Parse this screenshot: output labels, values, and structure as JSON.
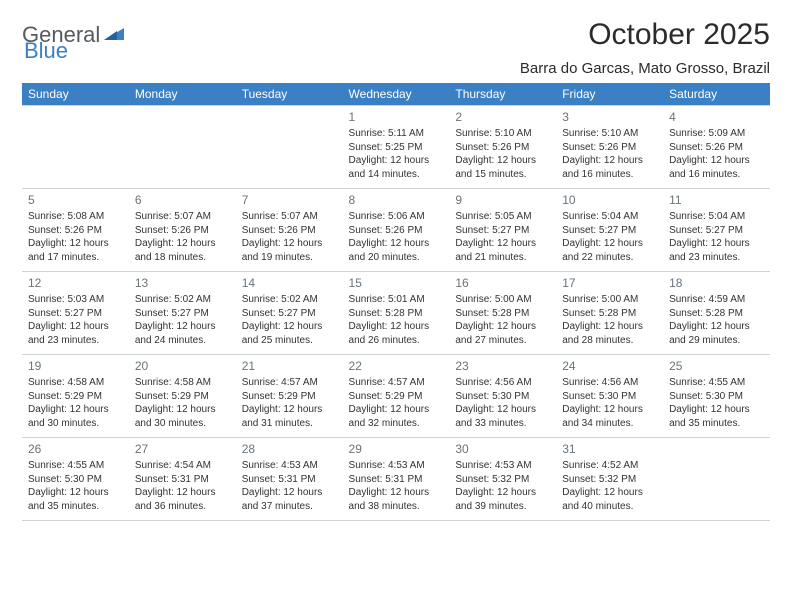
{
  "logo": {
    "general": "General",
    "blue": "Blue",
    "triangle_color": "#3b7fc4"
  },
  "title": "October 2025",
  "location": "Barra do Garcas, Mato Grosso, Brazil",
  "colors": {
    "header_bg": "#3b7fc4",
    "header_text": "#ffffff",
    "border": "#d0d3d6",
    "daynum": "#6a737b",
    "body_text": "#333333",
    "logo_gray": "#555b61",
    "logo_blue": "#3b7fc4",
    "background": "#ffffff"
  },
  "weekdays": [
    "Sunday",
    "Monday",
    "Tuesday",
    "Wednesday",
    "Thursday",
    "Friday",
    "Saturday"
  ],
  "weeks": [
    [
      null,
      null,
      null,
      {
        "n": "1",
        "sr": "Sunrise: 5:11 AM",
        "ss": "Sunset: 5:25 PM",
        "dl1": "Daylight: 12 hours",
        "dl2": "and 14 minutes."
      },
      {
        "n": "2",
        "sr": "Sunrise: 5:10 AM",
        "ss": "Sunset: 5:26 PM",
        "dl1": "Daylight: 12 hours",
        "dl2": "and 15 minutes."
      },
      {
        "n": "3",
        "sr": "Sunrise: 5:10 AM",
        "ss": "Sunset: 5:26 PM",
        "dl1": "Daylight: 12 hours",
        "dl2": "and 16 minutes."
      },
      {
        "n": "4",
        "sr": "Sunrise: 5:09 AM",
        "ss": "Sunset: 5:26 PM",
        "dl1": "Daylight: 12 hours",
        "dl2": "and 16 minutes."
      }
    ],
    [
      {
        "n": "5",
        "sr": "Sunrise: 5:08 AM",
        "ss": "Sunset: 5:26 PM",
        "dl1": "Daylight: 12 hours",
        "dl2": "and 17 minutes."
      },
      {
        "n": "6",
        "sr": "Sunrise: 5:07 AM",
        "ss": "Sunset: 5:26 PM",
        "dl1": "Daylight: 12 hours",
        "dl2": "and 18 minutes."
      },
      {
        "n": "7",
        "sr": "Sunrise: 5:07 AM",
        "ss": "Sunset: 5:26 PM",
        "dl1": "Daylight: 12 hours",
        "dl2": "and 19 minutes."
      },
      {
        "n": "8",
        "sr": "Sunrise: 5:06 AM",
        "ss": "Sunset: 5:26 PM",
        "dl1": "Daylight: 12 hours",
        "dl2": "and 20 minutes."
      },
      {
        "n": "9",
        "sr": "Sunrise: 5:05 AM",
        "ss": "Sunset: 5:27 PM",
        "dl1": "Daylight: 12 hours",
        "dl2": "and 21 minutes."
      },
      {
        "n": "10",
        "sr": "Sunrise: 5:04 AM",
        "ss": "Sunset: 5:27 PM",
        "dl1": "Daylight: 12 hours",
        "dl2": "and 22 minutes."
      },
      {
        "n": "11",
        "sr": "Sunrise: 5:04 AM",
        "ss": "Sunset: 5:27 PM",
        "dl1": "Daylight: 12 hours",
        "dl2": "and 23 minutes."
      }
    ],
    [
      {
        "n": "12",
        "sr": "Sunrise: 5:03 AM",
        "ss": "Sunset: 5:27 PM",
        "dl1": "Daylight: 12 hours",
        "dl2": "and 23 minutes."
      },
      {
        "n": "13",
        "sr": "Sunrise: 5:02 AM",
        "ss": "Sunset: 5:27 PM",
        "dl1": "Daylight: 12 hours",
        "dl2": "and 24 minutes."
      },
      {
        "n": "14",
        "sr": "Sunrise: 5:02 AM",
        "ss": "Sunset: 5:27 PM",
        "dl1": "Daylight: 12 hours",
        "dl2": "and 25 minutes."
      },
      {
        "n": "15",
        "sr": "Sunrise: 5:01 AM",
        "ss": "Sunset: 5:28 PM",
        "dl1": "Daylight: 12 hours",
        "dl2": "and 26 minutes."
      },
      {
        "n": "16",
        "sr": "Sunrise: 5:00 AM",
        "ss": "Sunset: 5:28 PM",
        "dl1": "Daylight: 12 hours",
        "dl2": "and 27 minutes."
      },
      {
        "n": "17",
        "sr": "Sunrise: 5:00 AM",
        "ss": "Sunset: 5:28 PM",
        "dl1": "Daylight: 12 hours",
        "dl2": "and 28 minutes."
      },
      {
        "n": "18",
        "sr": "Sunrise: 4:59 AM",
        "ss": "Sunset: 5:28 PM",
        "dl1": "Daylight: 12 hours",
        "dl2": "and 29 minutes."
      }
    ],
    [
      {
        "n": "19",
        "sr": "Sunrise: 4:58 AM",
        "ss": "Sunset: 5:29 PM",
        "dl1": "Daylight: 12 hours",
        "dl2": "and 30 minutes."
      },
      {
        "n": "20",
        "sr": "Sunrise: 4:58 AM",
        "ss": "Sunset: 5:29 PM",
        "dl1": "Daylight: 12 hours",
        "dl2": "and 30 minutes."
      },
      {
        "n": "21",
        "sr": "Sunrise: 4:57 AM",
        "ss": "Sunset: 5:29 PM",
        "dl1": "Daylight: 12 hours",
        "dl2": "and 31 minutes."
      },
      {
        "n": "22",
        "sr": "Sunrise: 4:57 AM",
        "ss": "Sunset: 5:29 PM",
        "dl1": "Daylight: 12 hours",
        "dl2": "and 32 minutes."
      },
      {
        "n": "23",
        "sr": "Sunrise: 4:56 AM",
        "ss": "Sunset: 5:30 PM",
        "dl1": "Daylight: 12 hours",
        "dl2": "and 33 minutes."
      },
      {
        "n": "24",
        "sr": "Sunrise: 4:56 AM",
        "ss": "Sunset: 5:30 PM",
        "dl1": "Daylight: 12 hours",
        "dl2": "and 34 minutes."
      },
      {
        "n": "25",
        "sr": "Sunrise: 4:55 AM",
        "ss": "Sunset: 5:30 PM",
        "dl1": "Daylight: 12 hours",
        "dl2": "and 35 minutes."
      }
    ],
    [
      {
        "n": "26",
        "sr": "Sunrise: 4:55 AM",
        "ss": "Sunset: 5:30 PM",
        "dl1": "Daylight: 12 hours",
        "dl2": "and 35 minutes."
      },
      {
        "n": "27",
        "sr": "Sunrise: 4:54 AM",
        "ss": "Sunset: 5:31 PM",
        "dl1": "Daylight: 12 hours",
        "dl2": "and 36 minutes."
      },
      {
        "n": "28",
        "sr": "Sunrise: 4:53 AM",
        "ss": "Sunset: 5:31 PM",
        "dl1": "Daylight: 12 hours",
        "dl2": "and 37 minutes."
      },
      {
        "n": "29",
        "sr": "Sunrise: 4:53 AM",
        "ss": "Sunset: 5:31 PM",
        "dl1": "Daylight: 12 hours",
        "dl2": "and 38 minutes."
      },
      {
        "n": "30",
        "sr": "Sunrise: 4:53 AM",
        "ss": "Sunset: 5:32 PM",
        "dl1": "Daylight: 12 hours",
        "dl2": "and 39 minutes."
      },
      {
        "n": "31",
        "sr": "Sunrise: 4:52 AM",
        "ss": "Sunset: 5:32 PM",
        "dl1": "Daylight: 12 hours",
        "dl2": "and 40 minutes."
      },
      null
    ]
  ]
}
